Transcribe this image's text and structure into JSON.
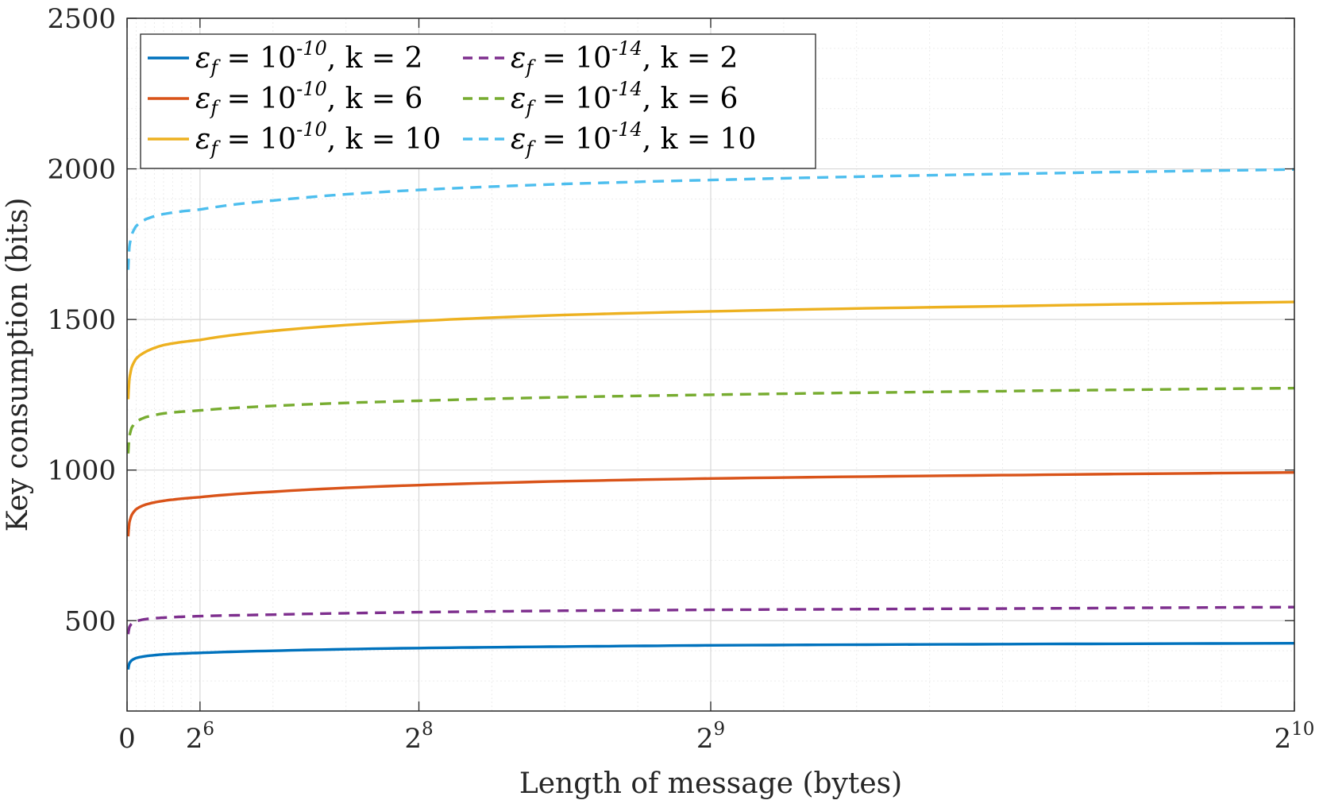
{
  "chart_data": {
    "type": "line",
    "xlabel": "Length of message (bytes)",
    "ylabel": "Key consumption (bits)",
    "xlim": [
      0,
      1024
    ],
    "ylim": [
      200,
      2500
    ],
    "x_ticks": [
      {
        "value": 0,
        "base": "0",
        "exp": ""
      },
      {
        "value": 64,
        "base": "2",
        "exp": "6"
      },
      {
        "value": 256,
        "base": "2",
        "exp": "8"
      },
      {
        "value": 512,
        "base": "2",
        "exp": "9"
      },
      {
        "value": 1024,
        "base": "2",
        "exp": "10"
      }
    ],
    "y_ticks": [
      500,
      1000,
      1500,
      2000,
      2500
    ],
    "grid": true,
    "legend_position": "top-left",
    "x": [
      1,
      2,
      4,
      8,
      16,
      32,
      64,
      128,
      256,
      384,
      512,
      768,
      1024
    ],
    "series": [
      {
        "name": "ε_f = 10^-10, k = 2",
        "eps_exp": "-10",
        "k": "2",
        "color": "#0072BD",
        "dash": false,
        "values": [
          338,
          358,
          368,
          376,
          382,
          388,
          393,
          400,
          409,
          414,
          418,
          422,
          425
        ]
      },
      {
        "name": "ε_f = 10^-10, k = 6",
        "eps_exp": "-10",
        "k": "6",
        "color": "#D95319",
        "dash": false,
        "values": [
          780,
          825,
          850,
          870,
          885,
          898,
          910,
          928,
          950,
          963,
          972,
          983,
          992
        ]
      },
      {
        "name": "ε_f = 10^-10, k = 10",
        "eps_exp": "-10",
        "k": "10",
        "color": "#EDB120",
        "dash": false,
        "values": [
          1235,
          1300,
          1340,
          1370,
          1392,
          1415,
          1432,
          1462,
          1495,
          1515,
          1527,
          1544,
          1558
        ]
      },
      {
        "name": "ε_f = 10^-14, k = 2",
        "eps_exp": "-14",
        "k": "2",
        "color": "#7E2F8E",
        "dash": true,
        "values": [
          455,
          478,
          490,
          498,
          505,
          510,
          515,
          520,
          528,
          533,
          536,
          540,
          545
        ]
      },
      {
        "name": "ε_f = 10^-14, k = 6",
        "eps_exp": "-14",
        "k": "6",
        "color": "#77AC30",
        "dash": true,
        "values": [
          1055,
          1110,
          1140,
          1160,
          1175,
          1188,
          1198,
          1213,
          1230,
          1242,
          1250,
          1262,
          1272
        ]
      },
      {
        "name": "ε_f = 10^-14, k = 10",
        "eps_exp": "-14",
        "k": "10",
        "color": "#4DBEEE",
        "dash": true,
        "values": [
          1665,
          1740,
          1780,
          1810,
          1832,
          1850,
          1865,
          1895,
          1930,
          1950,
          1963,
          1983,
          1998
        ]
      }
    ]
  }
}
